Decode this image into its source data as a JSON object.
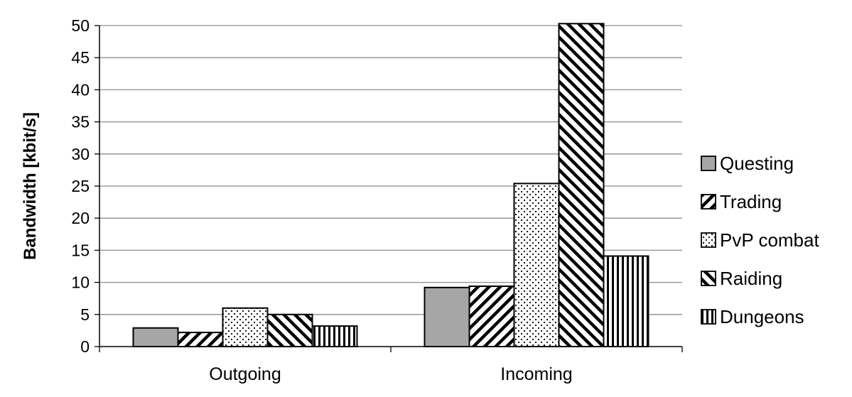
{
  "chart_data": {
    "type": "bar",
    "title": "",
    "xlabel": "",
    "ylabel": "Bandwidth [kbit/s]",
    "ylim": [
      0,
      50
    ],
    "yticks": [
      "0",
      "5",
      "10",
      "15",
      "20",
      "25",
      "30",
      "35",
      "40",
      "45",
      "50"
    ],
    "grid": true,
    "legend_position": "right",
    "categories": [
      "Outgoing",
      "Incoming"
    ],
    "series": [
      {
        "name": "Questing",
        "values": [
          2.9,
          9.2
        ],
        "pattern": "solid-gray",
        "color": "#a6a6a6"
      },
      {
        "name": "Trading",
        "values": [
          2.2,
          9.4
        ],
        "pattern": "forward-diagonal",
        "color": "#000000"
      },
      {
        "name": "PvP combat",
        "values": [
          6.0,
          25.4
        ],
        "pattern": "dots",
        "color": "#000000"
      },
      {
        "name": "Raiding",
        "values": [
          5.0,
          50.3
        ],
        "pattern": "backward-diagonal",
        "color": "#000000"
      },
      {
        "name": "Dungeons",
        "values": [
          3.2,
          14.1
        ],
        "pattern": "vertical-lines",
        "color": "#000000"
      }
    ]
  }
}
